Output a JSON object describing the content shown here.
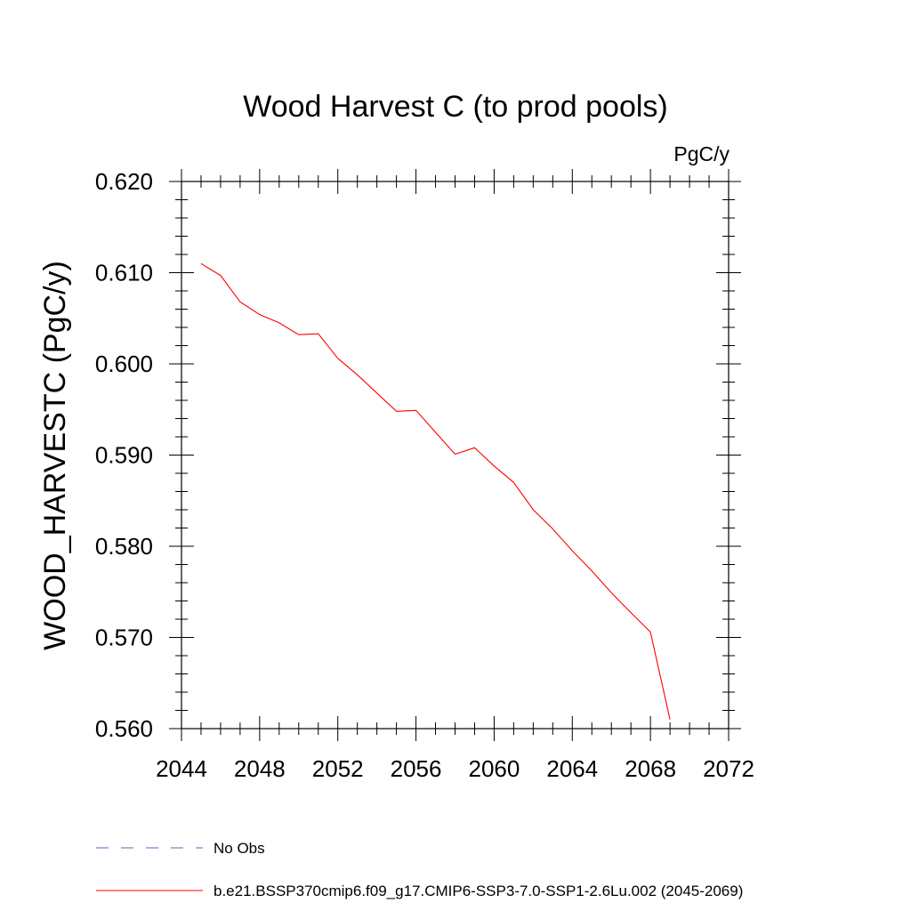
{
  "chart_data": {
    "type": "line",
    "title": "Wood Harvest C (to prod pools)",
    "units": "PgC/y",
    "xlabel": "",
    "ylabel": "WOOD_HARVESTC  (PgC/y)",
    "xlim": [
      2044,
      2072
    ],
    "ylim": [
      0.56,
      0.62
    ],
    "xticks": [
      2044,
      2048,
      2052,
      2056,
      2060,
      2064,
      2068,
      2072
    ],
    "xtick_labels": [
      "2044",
      "2048",
      "2052",
      "2056",
      "2060",
      "2064",
      "2068",
      "2072"
    ],
    "yticks": [
      0.56,
      0.57,
      0.58,
      0.59,
      0.6,
      0.61,
      0.62
    ],
    "ytick_labels": [
      "0.560",
      "0.570",
      "0.580",
      "0.590",
      "0.600",
      "0.610",
      "0.620"
    ],
    "grid": false,
    "legend_position": "bottom",
    "series": [
      {
        "name": "No Obs",
        "color": "#6a5acd",
        "style": "dashed",
        "x": [],
        "y": []
      },
      {
        "name": "b.e21.BSSP370cmip6.f09_g17.CMIP6-SSP3-7.0-SSP1-2.6Lu.002 (2045-2069)",
        "color": "#ff0000",
        "style": "solid",
        "x": [
          2045,
          2046,
          2047,
          2048,
          2049,
          2050,
          2051,
          2052,
          2053,
          2054,
          2055,
          2056,
          2057,
          2058,
          2059,
          2060,
          2061,
          2062,
          2063,
          2064,
          2065,
          2066,
          2067,
          2068,
          2069
        ],
        "y": [
          0.611,
          0.6097,
          0.6068,
          0.6054,
          0.6045,
          0.6032,
          0.6033,
          0.6006,
          0.5988,
          0.5968,
          0.5948,
          0.5949,
          0.5925,
          0.5901,
          0.5908,
          0.5888,
          0.587,
          0.584,
          0.5819,
          0.5795,
          0.5773,
          0.5749,
          0.5727,
          0.5706,
          0.561
        ]
      }
    ]
  }
}
